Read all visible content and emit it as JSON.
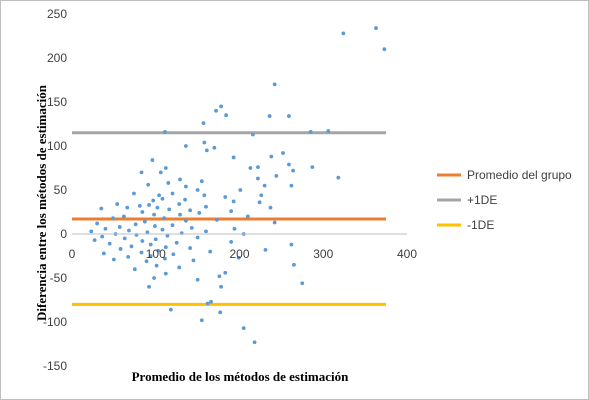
{
  "chart_data": {
    "type": "scatter",
    "xlabel": "Promedio de los métodos de estimación",
    "ylabel": "Diferencia entre los métodos de estimación",
    "xlim": [
      0,
      400
    ],
    "ylim": [
      -150,
      250
    ],
    "x_ticks": [
      "0",
      "100",
      "200",
      "300",
      "400"
    ],
    "y_ticks": [
      "250",
      "200",
      "150",
      "100",
      "50",
      "0",
      "-50",
      "-100",
      "-150"
    ],
    "grid": false,
    "legend_position": "right",
    "reference_lines": [
      {
        "name": "Promedio del grupo",
        "y": 17,
        "x_range": [
          0,
          375
        ],
        "color": "#ED7D31"
      },
      {
        "name": "+1DE",
        "y": 115,
        "x_range": [
          0,
          375
        ],
        "color": "#A5A5A5"
      },
      {
        "name": "-1DE",
        "y": -80,
        "x_range": [
          0,
          375
        ],
        "color": "#FFC000"
      }
    ],
    "series": [
      {
        "color": "#5B9BD5",
        "points": [
          [
            363,
            234
          ],
          [
            324,
            228
          ],
          [
            373,
            210
          ],
          [
            242,
            170
          ],
          [
            178,
            145
          ],
          [
            172,
            140
          ],
          [
            184,
            135
          ],
          [
            236,
            134
          ],
          [
            259,
            134
          ],
          [
            157,
            126
          ],
          [
            306,
            117
          ],
          [
            111,
            116
          ],
          [
            285,
            116
          ],
          [
            216,
            113
          ],
          [
            158,
            104
          ],
          [
            136,
            100
          ],
          [
            170,
            98
          ],
          [
            161,
            95
          ],
          [
            252,
            92
          ],
          [
            238,
            88
          ],
          [
            193,
            87
          ],
          [
            259,
            79
          ],
          [
            287,
            76
          ],
          [
            222,
            76
          ],
          [
            213,
            75
          ],
          [
            96,
            84
          ],
          [
            318,
            64
          ],
          [
            112,
            75
          ],
          [
            106,
            70
          ],
          [
            222,
            63
          ],
          [
            264,
            72
          ],
          [
            83,
            70
          ],
          [
            244,
            66
          ],
          [
            129,
            62
          ],
          [
            155,
            60
          ],
          [
            230,
            55
          ],
          [
            115,
            58
          ],
          [
            91,
            56
          ],
          [
            136,
            54
          ],
          [
            150,
            50
          ],
          [
            262,
            55
          ],
          [
            201,
            50
          ],
          [
            120,
            46
          ],
          [
            74,
            46
          ],
          [
            104,
            44
          ],
          [
            158,
            44
          ],
          [
            183,
            42
          ],
          [
            226,
            44
          ],
          [
            108,
            40
          ],
          [
            135,
            39
          ],
          [
            97,
            38
          ],
          [
            193,
            37
          ],
          [
            224,
            36
          ],
          [
            128,
            34
          ],
          [
            54,
            34
          ],
          [
            92,
            33
          ],
          [
            81,
            32
          ],
          [
            160,
            31
          ],
          [
            237,
            30
          ],
          [
            66,
            30
          ],
          [
            102,
            30
          ],
          [
            116,
            28
          ],
          [
            35,
            29
          ],
          [
            141,
            27
          ],
          [
            190,
            26
          ],
          [
            84,
            25
          ],
          [
            152,
            24
          ],
          [
            98,
            22
          ],
          [
            129,
            22
          ],
          [
            210,
            20
          ],
          [
            62,
            20
          ],
          [
            110,
            18
          ],
          [
            49,
            18
          ],
          [
            173,
            16
          ],
          [
            136,
            15
          ],
          [
            87,
            14
          ],
          [
            242,
            13
          ],
          [
            30,
            12
          ],
          [
            76,
            11
          ],
          [
            120,
            10
          ],
          [
            99,
            9
          ],
          [
            57,
            8
          ],
          [
            143,
            7
          ],
          [
            194,
            6
          ],
          [
            40,
            6
          ],
          [
            108,
            5
          ],
          [
            68,
            4
          ],
          [
            160,
            3
          ],
          [
            23,
            3
          ],
          [
            90,
            2
          ],
          [
            131,
            1
          ],
          [
            52,
            0
          ],
          [
            205,
            0
          ],
          [
            77,
            -1
          ],
          [
            114,
            -2
          ],
          [
            36,
            -3
          ],
          [
            150,
            -4
          ],
          [
            63,
            -5
          ],
          [
            100,
            -6
          ],
          [
            27,
            -7
          ],
          [
            84,
            -8
          ],
          [
            190,
            -9
          ],
          [
            125,
            -10
          ],
          [
            45,
            -11
          ],
          [
            94,
            -12
          ],
          [
            262,
            -12
          ],
          [
            71,
            -14
          ],
          [
            112,
            -15
          ],
          [
            141,
            -16
          ],
          [
            58,
            -17
          ],
          [
            231,
            -18
          ],
          [
            103,
            -19
          ],
          [
            165,
            -20
          ],
          [
            83,
            -21
          ],
          [
            38,
            -22
          ],
          [
            121,
            -23
          ],
          [
            94,
            -25
          ],
          [
            67,
            -26
          ],
          [
            199,
            -27
          ],
          [
            111,
            -28
          ],
          [
            50,
            -29
          ],
          [
            145,
            -30
          ],
          [
            89,
            -31
          ],
          [
            265,
            -35
          ],
          [
            101,
            -36
          ],
          [
            128,
            -38
          ],
          [
            75,
            -40
          ],
          [
            183,
            -44
          ],
          [
            112,
            -45
          ],
          [
            176,
            -48
          ],
          [
            98,
            -50
          ],
          [
            150,
            -52
          ],
          [
            275,
            -56
          ],
          [
            92,
            -60
          ],
          [
            178,
            -60
          ],
          [
            166,
            -77
          ],
          [
            162,
            -79
          ],
          [
            118,
            -86
          ],
          [
            177,
            -89
          ],
          [
            155,
            -98
          ],
          [
            205,
            -107
          ],
          [
            218,
            -123
          ]
        ]
      }
    ]
  }
}
